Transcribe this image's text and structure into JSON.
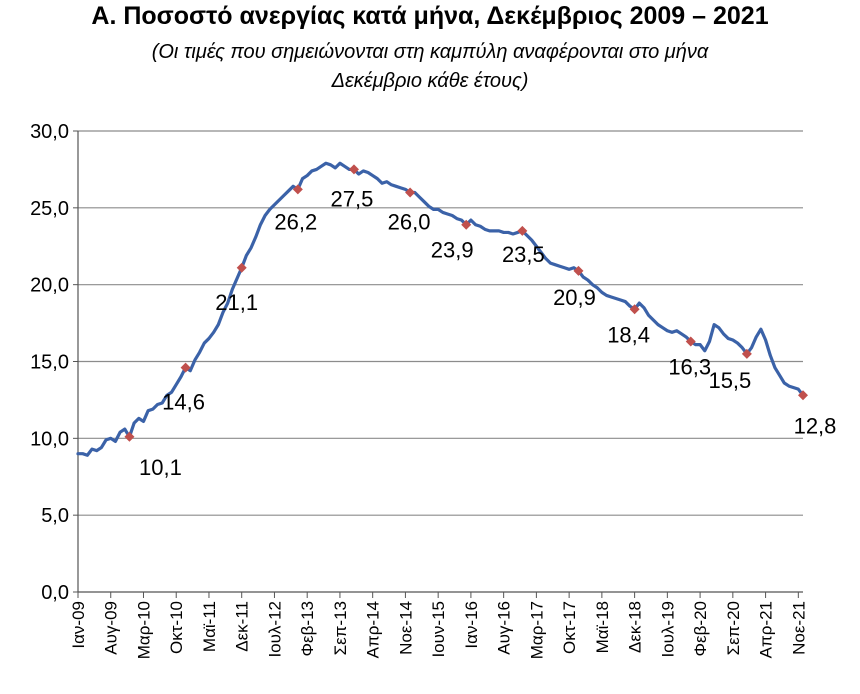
{
  "title": "Α. Ποσοστό ανεργίας κατά μήνα, Δεκέμβριος 2009 – 2021",
  "subtitle_line1": "(Οι τιμές που σημειώνονται στη καμπύλη αναφέρονται στο μήνα",
  "subtitle_line2": "Δεκέμβριο κάθε έτους)",
  "chart_data": {
    "type": "line",
    "title": "Α. Ποσοστό ανεργίας κατά μήνα, Δεκέμβριος 2009 – 2021",
    "subtitle": "(Οι τιμές που σημειώνονται στη καμπύλη αναφέρονται στο μήνα Δεκέμβριο κάθε έτους)",
    "xlabel": "",
    "ylabel": "",
    "ylim": [
      0,
      30
    ],
    "yticks": [
      "0,0",
      "5,0",
      "10,0",
      "15,0",
      "20,0",
      "25,0",
      "30,0"
    ],
    "grid": true,
    "legend": "none",
    "x_tick_labels": [
      "Ιαν-09",
      "Αυγ-09",
      "Μαρ-10",
      "Οκτ-10",
      "Μαϊ-11",
      "Δεκ-11",
      "Ιουλ-12",
      "Φεβ-13",
      "Σεπ-13",
      "Απρ-14",
      "Νοε-14",
      "Ιουν-15",
      "Ιαν-16",
      "Αυγ-16",
      "Μαρ-17",
      "Οκτ-17",
      "Μαϊ-18",
      "Δεκ-18",
      "Ιουλ-19",
      "Φεβ-20",
      "Σεπ-20",
      "Απρ-21",
      "Νοε-21"
    ],
    "line_color": "#3b62a8",
    "marker_color": "#c0504d",
    "series": [
      {
        "values": [
          9.0,
          9.0,
          8.9,
          9.3,
          9.2,
          9.4,
          9.9,
          10.0,
          9.8,
          10.4,
          10.6,
          10.1,
          11.0,
          11.3,
          11.1,
          11.8,
          11.9,
          12.2,
          12.3,
          12.8,
          13.0,
          13.5,
          14.0,
          14.6,
          14.4,
          15.1,
          15.6,
          16.2,
          16.5,
          16.9,
          17.4,
          18.2,
          18.8,
          19.7,
          20.4,
          21.1,
          21.9,
          22.4,
          23.1,
          23.9,
          24.5,
          24.9,
          25.2,
          25.5,
          25.8,
          26.1,
          26.4,
          26.2,
          26.9,
          27.1,
          27.4,
          27.5,
          27.7,
          27.9,
          27.8,
          27.6,
          27.9,
          27.7,
          27.5,
          27.5,
          27.2,
          27.4,
          27.3,
          27.1,
          26.9,
          26.6,
          26.7,
          26.5,
          26.4,
          26.3,
          26.2,
          26.0,
          26.0,
          25.7,
          25.4,
          25.1,
          24.9,
          24.9,
          24.7,
          24.6,
          24.5,
          24.3,
          24.2,
          23.9,
          24.2,
          23.9,
          23.8,
          23.6,
          23.5,
          23.5,
          23.5,
          23.4,
          23.4,
          23.3,
          23.4,
          23.5,
          23.2,
          22.9,
          22.5,
          22.1,
          21.7,
          21.4,
          21.3,
          21.2,
          21.1,
          21.0,
          21.1,
          20.9,
          20.5,
          20.3,
          20.0,
          19.8,
          19.5,
          19.3,
          19.2,
          19.1,
          19.0,
          18.9,
          18.6,
          18.4,
          18.8,
          18.5,
          18.0,
          17.7,
          17.4,
          17.2,
          17.0,
          16.9,
          17.0,
          16.8,
          16.6,
          16.3,
          16.1,
          16.1,
          15.7,
          16.3,
          17.4,
          17.2,
          16.8,
          16.5,
          16.4,
          16.2,
          15.9,
          15.5,
          15.9,
          16.6,
          17.1,
          16.4,
          15.4,
          14.6,
          14.1,
          13.6,
          13.4,
          13.3,
          13.2,
          12.8
        ]
      }
    ],
    "data_labels": [
      {
        "month_index": 11,
        "text": "10,1"
      },
      {
        "month_index": 23,
        "text": "14,6"
      },
      {
        "month_index": 35,
        "text": "21,1"
      },
      {
        "month_index": 47,
        "text": "26,2"
      },
      {
        "month_index": 59,
        "text": "27,5"
      },
      {
        "month_index": 71,
        "text": "26,0"
      },
      {
        "month_index": 83,
        "text": "23,9"
      },
      {
        "month_index": 95,
        "text": "23,5"
      },
      {
        "month_index": 107,
        "text": "20,9"
      },
      {
        "month_index": 119,
        "text": "18,4"
      },
      {
        "month_index": 131,
        "text": "16,3"
      },
      {
        "month_index": 143,
        "text": "15,5"
      },
      {
        "month_index": 155,
        "text": "12,8"
      }
    ]
  }
}
